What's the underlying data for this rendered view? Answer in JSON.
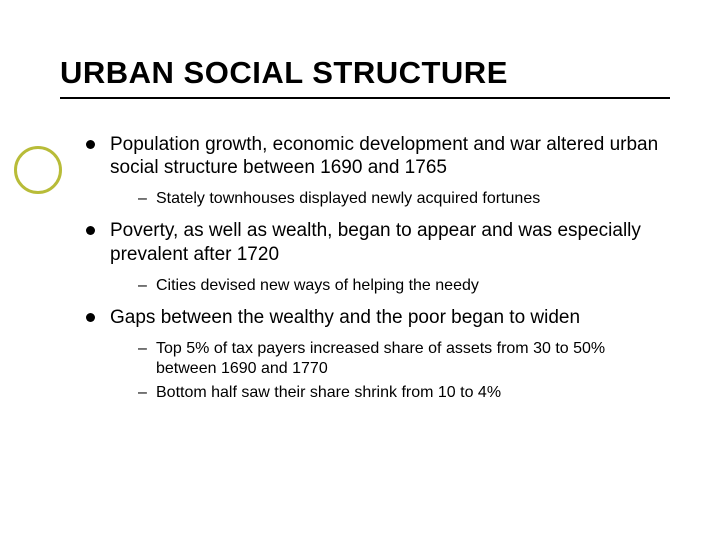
{
  "title": "URBAN SOCIAL STRUCTURE",
  "bullets": [
    {
      "text": "Population growth, economic development and war altered urban social structure between 1690 and 1765",
      "sub": [
        {
          "text": "Stately townhouses displayed newly acquired fortunes"
        }
      ]
    },
    {
      "text": "Poverty, as well as wealth, began to appear and was especially prevalent after 1720",
      "sub": [
        {
          "text": "Cities devised new ways of helping the needy"
        }
      ]
    },
    {
      "text": "Gaps between the wealthy and the poor began to widen",
      "sub": [
        {
          "text": "Top 5% of tax payers increased share of assets from 30 to 50% between 1690 and 1770"
        },
        {
          "text": "Bottom half saw their share shrink from 10 to 4%"
        }
      ]
    }
  ],
  "colors": {
    "circle_border": "#b8bc38",
    "text": "#000000",
    "rule": "#000000",
    "background": "#ffffff"
  }
}
